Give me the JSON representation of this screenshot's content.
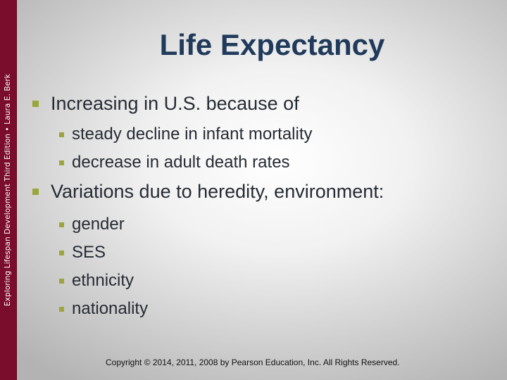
{
  "sidebar": {
    "text": "Exploring Lifespan Development Third Edition • Laura E. Berk"
  },
  "slide": {
    "title": "Life Expectancy",
    "bullets": [
      {
        "text": "Increasing in U.S. because of",
        "sub": [
          "steady decline in infant mortality",
          "decrease in adult death rates"
        ]
      },
      {
        "text": "Variations due to heredity, environment:",
        "sub": [
          "gender",
          "SES",
          "ethnicity",
          "nationality"
        ]
      }
    ]
  },
  "footer": {
    "copyright": "Copyright © 2014, 2011, 2008 by Pearson Education, Inc. All Rights Reserved."
  },
  "colors": {
    "sidebar": "#7a0c2c",
    "title": "#1f3a5a",
    "bullet_marker": "#9aa63b",
    "body_text": "#262b33"
  },
  "icons": {
    "bullet": "square-bullet-icon"
  }
}
